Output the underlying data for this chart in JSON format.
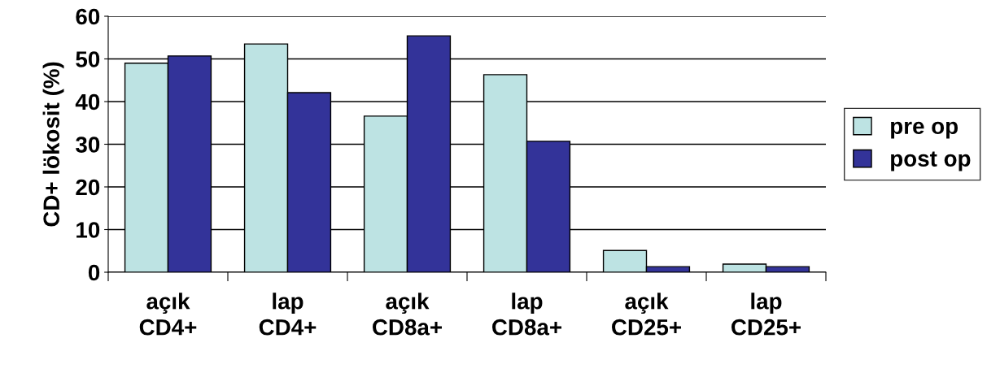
{
  "chart_data": {
    "type": "bar",
    "ylabel": "CD+ lökosit (%)",
    "categories": [
      "açık\nCD4+",
      "lap\nCD4+",
      "açık\nCD8a+",
      "lap\nCD8a+",
      "açık\nCD25+",
      "lap\nCD25+"
    ],
    "series": [
      {
        "name": "pre op",
        "color": "#bde3e3",
        "values": [
          49,
          53.5,
          36.6,
          46.3,
          5.1,
          1.9
        ]
      },
      {
        "name": "post op",
        "color": "#333399",
        "values": [
          50.7,
          42.1,
          55.4,
          30.7,
          1.3,
          1.3
        ]
      }
    ],
    "ylim": [
      0,
      60
    ],
    "yticks": [
      0,
      10,
      20,
      30,
      40,
      50,
      60
    ],
    "grid": "y",
    "legend": "right"
  }
}
